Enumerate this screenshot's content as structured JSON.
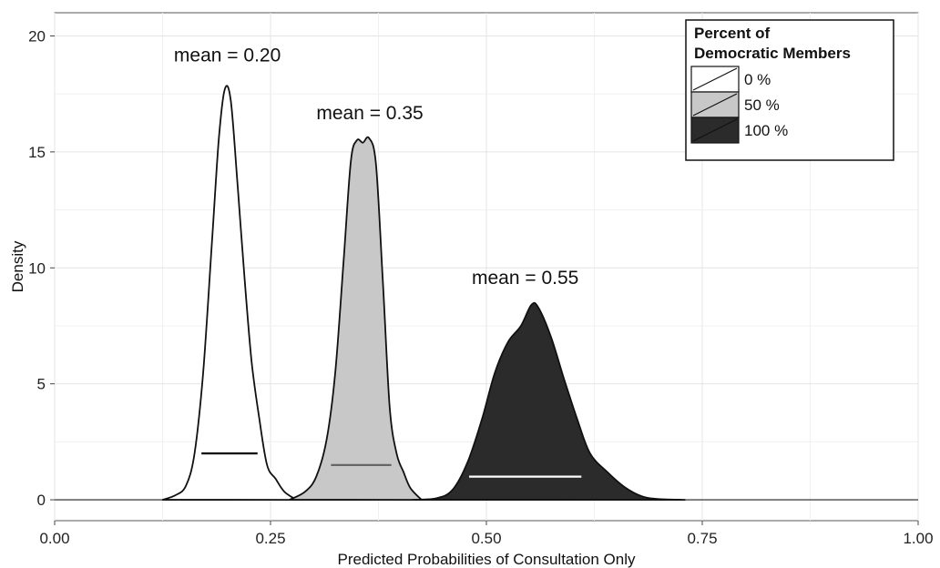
{
  "chart_data": {
    "type": "area",
    "xlabel": "Predicted Probabilities of Consultation Only",
    "ylabel": "Density",
    "xlim": [
      0,
      1
    ],
    "ylim": [
      -0.9,
      21
    ],
    "x_ticks": [
      0.0,
      0.25,
      0.5,
      0.75,
      1.0
    ],
    "x_tick_labels": [
      "0.00",
      "0.25",
      "0.50",
      "0.75",
      "1.00"
    ],
    "y_ticks": [
      0,
      5,
      10,
      15,
      20
    ],
    "y_tick_labels": [
      "0",
      "5",
      "10",
      "15",
      "20"
    ],
    "grid": true,
    "legend": {
      "title_lines": [
        "Percent of",
        "Democratic Members"
      ],
      "placement": "top-right",
      "entries": [
        "0 %",
        "50 %",
        "100 %"
      ]
    },
    "series": [
      {
        "name": "0 %",
        "fill": "#ffffff",
        "mean": 0.2,
        "mean_label": "mean = 0.20",
        "interval": [
          0.17,
          0.235
        ],
        "interval_y": 2.0,
        "interval_color": "#111111",
        "points": [
          [
            0.125,
            0
          ],
          [
            0.14,
            0.2
          ],
          [
            0.152,
            0.6
          ],
          [
            0.162,
            2.0
          ],
          [
            0.172,
            5.5
          ],
          [
            0.182,
            11.0
          ],
          [
            0.19,
            15.5
          ],
          [
            0.197,
            17.7
          ],
          [
            0.204,
            17.2
          ],
          [
            0.212,
            13.5
          ],
          [
            0.22,
            9.5
          ],
          [
            0.228,
            6.0
          ],
          [
            0.237,
            3.5
          ],
          [
            0.246,
            1.5
          ],
          [
            0.256,
            0.9
          ],
          [
            0.266,
            0.35
          ],
          [
            0.28,
            0
          ]
        ]
      },
      {
        "name": "50 %",
        "fill": "#c8c8c8",
        "mean": 0.35,
        "mean_label": "mean = 0.35",
        "interval": [
          0.32,
          0.39
        ],
        "interval_y": 1.5,
        "interval_color": "#666666",
        "points": [
          [
            0.272,
            0
          ],
          [
            0.29,
            0.35
          ],
          [
            0.303,
            1.0
          ],
          [
            0.315,
            2.6
          ],
          [
            0.325,
            5.5
          ],
          [
            0.335,
            10.5
          ],
          [
            0.343,
            14.6
          ],
          [
            0.35,
            15.5
          ],
          [
            0.357,
            15.4
          ],
          [
            0.364,
            15.6
          ],
          [
            0.372,
            14.5
          ],
          [
            0.38,
            9.5
          ],
          [
            0.388,
            4.0
          ],
          [
            0.396,
            2.0
          ],
          [
            0.404,
            1.2
          ],
          [
            0.412,
            0.5
          ],
          [
            0.425,
            0
          ]
        ]
      },
      {
        "name": "100 %",
        "fill": "#2b2b2b",
        "mean": 0.55,
        "mean_label": "mean = 0.55",
        "interval": [
          0.48,
          0.61
        ],
        "interval_y": 1.0,
        "interval_color": "#ffffff",
        "points": [
          [
            0.415,
            0
          ],
          [
            0.44,
            0.05
          ],
          [
            0.46,
            0.4
          ],
          [
            0.478,
            1.6
          ],
          [
            0.495,
            3.5
          ],
          [
            0.51,
            5.5
          ],
          [
            0.525,
            6.8
          ],
          [
            0.54,
            7.5
          ],
          [
            0.552,
            8.4
          ],
          [
            0.56,
            8.3
          ],
          [
            0.575,
            7.0
          ],
          [
            0.59,
            5.2
          ],
          [
            0.605,
            3.5
          ],
          [
            0.62,
            2.0
          ],
          [
            0.64,
            1.2
          ],
          [
            0.66,
            0.55
          ],
          [
            0.68,
            0.15
          ],
          [
            0.7,
            0.03
          ],
          [
            0.73,
            0
          ]
        ]
      }
    ],
    "annotations": [
      {
        "text": "mean = 0.20",
        "x": 0.2,
        "y": 18.9
      },
      {
        "text": "mean = 0.35",
        "x": 0.365,
        "y": 16.4
      },
      {
        "text": "mean = 0.55",
        "x": 0.545,
        "y": 9.3
      }
    ]
  }
}
